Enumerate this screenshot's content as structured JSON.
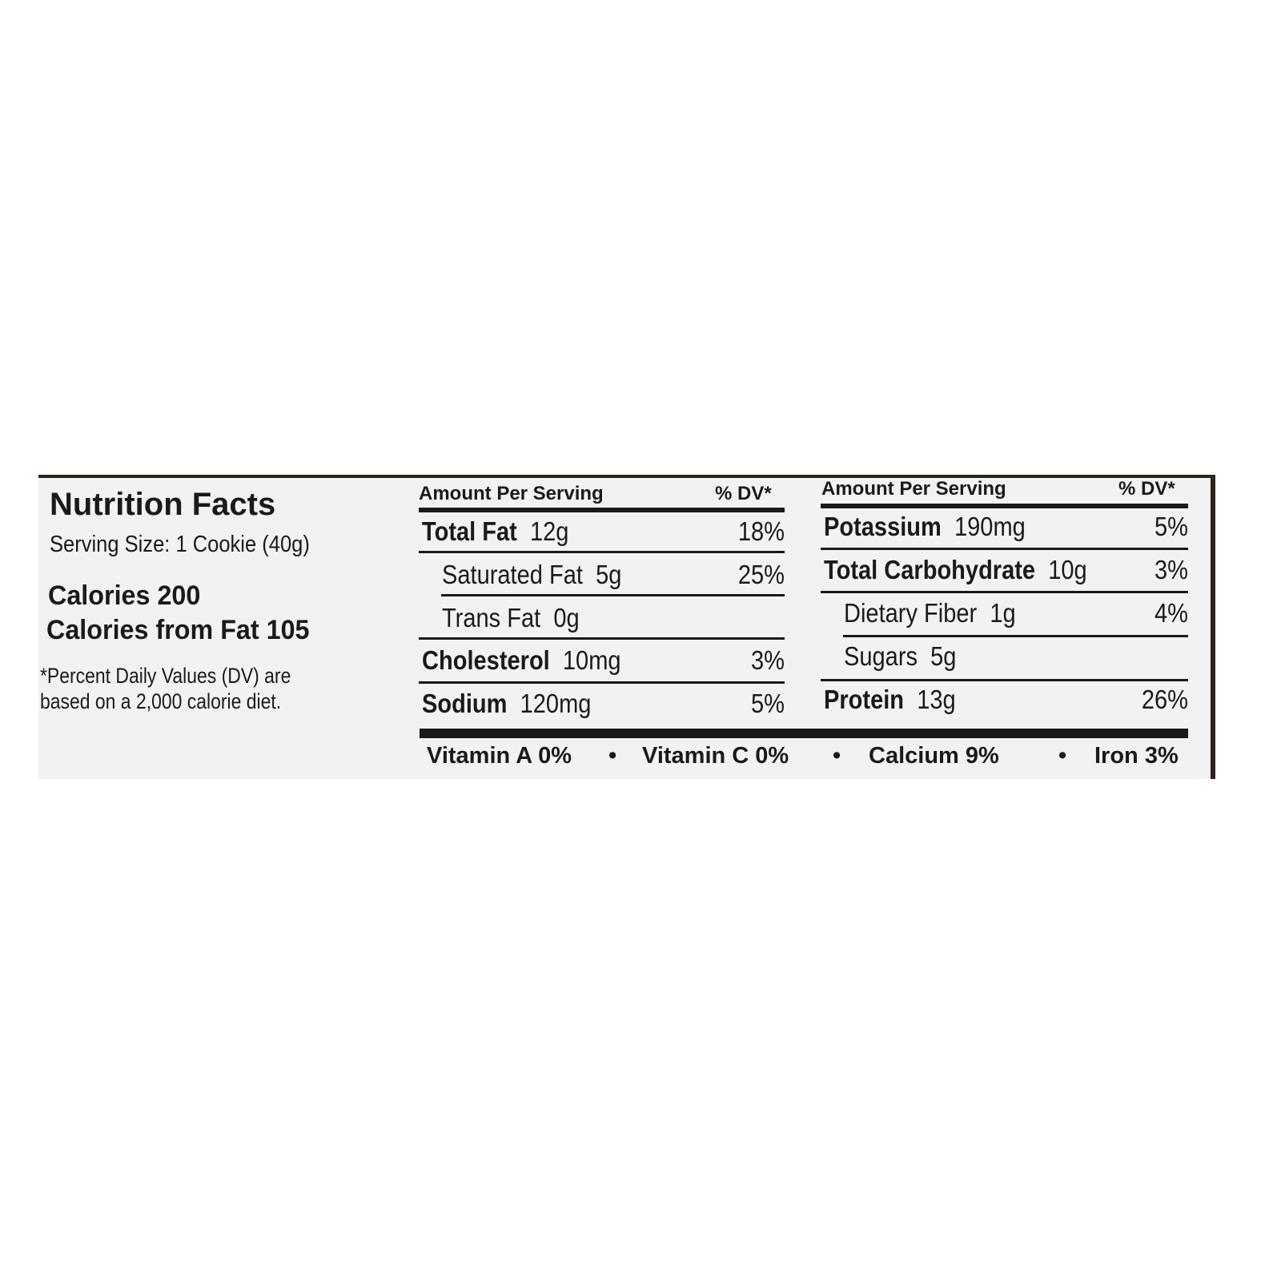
{
  "label": {
    "title": "Nutrition Facts",
    "serving_size": "Serving Size: 1 Cookie (40g)",
    "calories": "Calories 200",
    "calories_from_fat": "Calories from Fat 105",
    "footnote_line1": "*Percent Daily Values (DV) are",
    "footnote_line2": "based on a 2,000 calorie diet."
  },
  "left_table": {
    "header_amount": "Amount Per Serving",
    "header_dv": "% DV*",
    "rows": [
      {
        "name": "Total Fat",
        "amount": "12g",
        "dv": "18%",
        "bold": true
      },
      {
        "name": "Saturated Fat",
        "amount": "5g",
        "dv": "25%",
        "bold": false
      },
      {
        "name": "Trans Fat",
        "amount": "0g",
        "dv": "",
        "bold": false
      },
      {
        "name": "Cholesterol",
        "amount": "10mg",
        "dv": "3%",
        "bold": true
      },
      {
        "name": "Sodium",
        "amount": "120mg",
        "dv": "5%",
        "bold": true
      }
    ]
  },
  "right_table": {
    "header_amount": "Amount Per Serving",
    "header_dv": "% DV*",
    "rows": [
      {
        "name": "Potassium",
        "amount": "190mg",
        "dv": "5%",
        "bold": true
      },
      {
        "name": "Total Carbohydrate",
        "amount": "10g",
        "dv": "3%",
        "bold": true
      },
      {
        "name": "Dietary Fiber",
        "amount": "1g",
        "dv": "4%",
        "bold": false
      },
      {
        "name": "Sugars",
        "amount": "5g",
        "dv": "",
        "bold": false
      },
      {
        "name": "Protein",
        "amount": "13g",
        "dv": "26%",
        "bold": true
      }
    ]
  },
  "vitamins": [
    "Vitamin A 0%",
    "Vitamin C 0%",
    "Calcium 9%",
    "Iron 3%"
  ],
  "colors": {
    "panel": "#f2f2f2",
    "text": "#1a1a1a",
    "edge": "#2e241d"
  }
}
